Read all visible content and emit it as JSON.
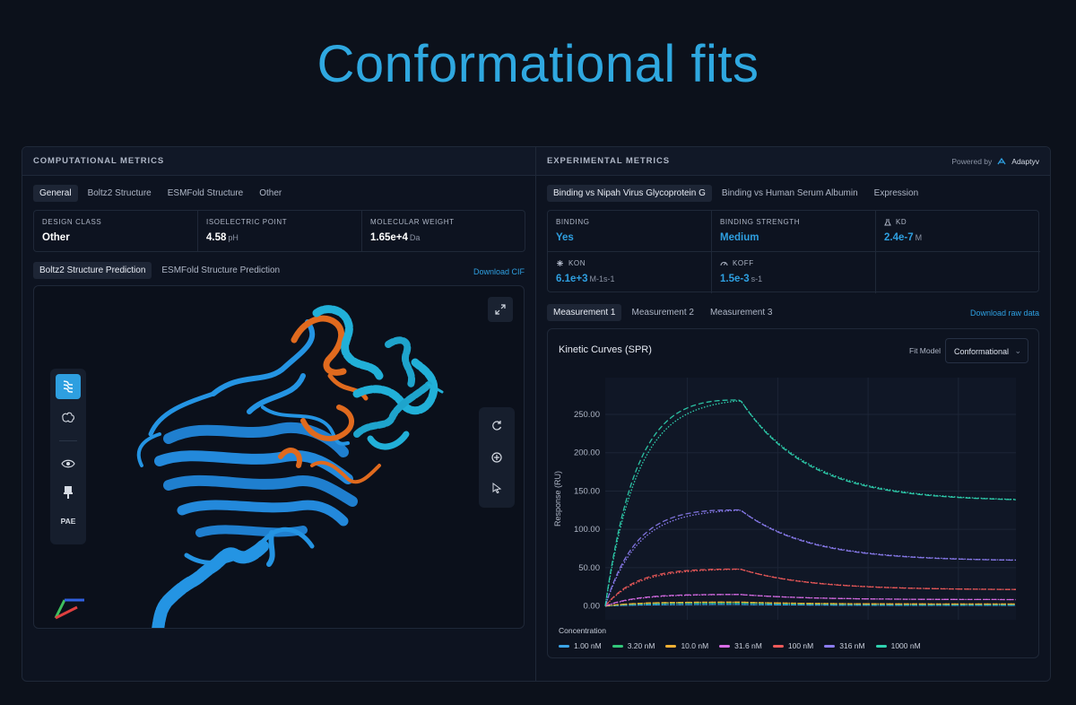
{
  "hero_title": "Conformational fits",
  "left": {
    "header": "COMPUTATIONAL METRICS",
    "tabs": [
      "General",
      "Boltz2 Structure",
      "ESMFold Structure",
      "Other"
    ],
    "metrics": [
      {
        "label": "DESIGN CLASS",
        "value": "Other",
        "unit": ""
      },
      {
        "label": "ISOELECTRIC POINT",
        "value": "4.58",
        "unit": "pH"
      },
      {
        "label": "MOLECULAR WEIGHT",
        "value": "1.65e+4",
        "unit": "Da"
      }
    ],
    "structure_tabs": [
      "Boltz2 Structure Prediction",
      "ESMFold Structure Prediction"
    ],
    "download_label": "Download CIF",
    "tools": {
      "pae_label": "PAE"
    }
  },
  "right": {
    "header": "EXPERIMENTAL METRICS",
    "powered_by": "Powered by",
    "brand": "Adaptyv",
    "tabs": [
      "Binding vs Nipah Virus Glycoprotein G",
      "Binding vs Human Serum Albumin",
      "Expression"
    ],
    "metrics": [
      {
        "label": "BINDING",
        "value": "Yes",
        "unit": "",
        "icon": ""
      },
      {
        "label": "BINDING STRENGTH",
        "value": "Medium",
        "unit": "",
        "icon": ""
      },
      {
        "label": "KD",
        "value": "2.4e-7",
        "unit": "M",
        "icon": "flask-icon"
      },
      {
        "label": "KON",
        "value": "6.1e+3",
        "unit": "M-1s-1",
        "icon": "kon-icon"
      },
      {
        "label": "KOFF",
        "value": "1.5e-3",
        "unit": "s-1",
        "icon": "gauge-icon"
      }
    ],
    "measurement_tabs": [
      "Measurement 1",
      "Measurement 2",
      "Measurement 3"
    ],
    "download_label": "Download raw data",
    "chart_card": {
      "title": "Kinetic Curves (SPR)",
      "fit_label": "Fit Model",
      "fit_value": "Conformational",
      "legend_title": "Concentration"
    }
  },
  "colors": {
    "accent": "#2e9fe0",
    "hero": "#2fa8e0"
  },
  "chart_data": {
    "type": "line",
    "title": "Kinetic Curves (SPR)",
    "xlabel": "",
    "ylabel": "Response (RU)",
    "ylim": [
      -18,
      298
    ],
    "xlim": [
      0,
      1
    ],
    "association_end": 0.33,
    "yticks": [
      "0.00",
      "50.00",
      "100.00",
      "150.00",
      "200.00",
      "250.00"
    ],
    "ytick_values": [
      0,
      50,
      100,
      150,
      200,
      250
    ],
    "grid": true,
    "legend": "bottom",
    "series": [
      {
        "name": "1.00 nM",
        "color": "#3ba4e6",
        "rmax": 2,
        "ka": 12,
        "kd": 6,
        "plateau_frac": 0.5
      },
      {
        "name": "3.20 nM",
        "color": "#32c77a",
        "rmax": 4,
        "ka": 12,
        "kd": 6,
        "plateau_frac": 0.5
      },
      {
        "name": "10.0 nM",
        "color": "#f2b134",
        "rmax": 5,
        "ka": 12,
        "kd": 6,
        "plateau_frac": 0.5
      },
      {
        "name": "31.6 nM",
        "color": "#d86ce6",
        "rmax": 15,
        "ka": 12,
        "kd": 6,
        "plateau_frac": 0.55
      },
      {
        "name": "100 nM",
        "color": "#ef5a5a",
        "rmax": 48,
        "ka": 12,
        "kd": 6,
        "plateau_frac": 0.44
      },
      {
        "name": "316 nM",
        "color": "#8b7cf0",
        "rmax": 125,
        "ka": 12,
        "kd": 6,
        "plateau_frac": 0.47
      },
      {
        "name": "1000 nM",
        "color": "#2fd3b0",
        "rmax": 268,
        "ka": 12,
        "kd": 6,
        "plateau_frac": 0.51
      }
    ]
  }
}
